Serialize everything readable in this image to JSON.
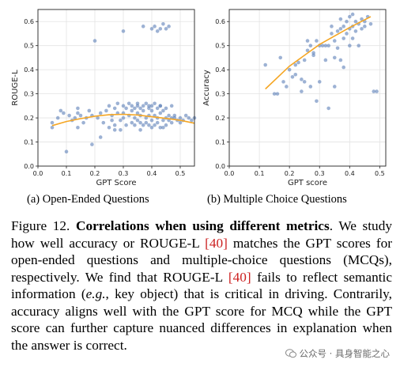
{
  "chart_data": [
    {
      "type": "scatter",
      "panel": "a",
      "xlabel": "GPT Score",
      "ylabel": "ROUGE-L",
      "xlim": [
        0.0,
        0.55
      ],
      "ylim": [
        0.0,
        0.65
      ],
      "xticks": [
        "0.0",
        "0.1",
        "0.2",
        "0.3",
        "0.4",
        "0.5"
      ],
      "yticks": [
        "0.0",
        "0.1",
        "0.2",
        "0.3",
        "0.4",
        "0.5",
        "0.6"
      ],
      "grid": true,
      "point_color": "#5b7fb8",
      "trend_color": "#f5a623",
      "trend_x": [
        0.05,
        0.1,
        0.15,
        0.2,
        0.25,
        0.3,
        0.35,
        0.4,
        0.45,
        0.5,
        0.55
      ],
      "trend_y": [
        0.168,
        0.185,
        0.197,
        0.207,
        0.213,
        0.215,
        0.212,
        0.205,
        0.198,
        0.19,
        0.178
      ],
      "points": [
        [
          0.05,
          0.16
        ],
        [
          0.05,
          0.18
        ],
        [
          0.07,
          0.2
        ],
        [
          0.08,
          0.23
        ],
        [
          0.09,
          0.22
        ],
        [
          0.1,
          0.06
        ],
        [
          0.11,
          0.21
        ],
        [
          0.12,
          0.19
        ],
        [
          0.13,
          0.2
        ],
        [
          0.14,
          0.22
        ],
        [
          0.14,
          0.24
        ],
        [
          0.15,
          0.21
        ],
        [
          0.16,
          0.18
        ],
        [
          0.17,
          0.2
        ],
        [
          0.18,
          0.23
        ],
        [
          0.19,
          0.21
        ],
        [
          0.19,
          0.09
        ],
        [
          0.2,
          0.52
        ],
        [
          0.21,
          0.2
        ],
        [
          0.22,
          0.22
        ],
        [
          0.22,
          0.12
        ],
        [
          0.23,
          0.18
        ],
        [
          0.24,
          0.23
        ],
        [
          0.25,
          0.16
        ],
        [
          0.25,
          0.25
        ],
        [
          0.26,
          0.21
        ],
        [
          0.26,
          0.19
        ],
        [
          0.27,
          0.17
        ],
        [
          0.27,
          0.24
        ],
        [
          0.28,
          0.22
        ],
        [
          0.28,
          0.26
        ],
        [
          0.29,
          0.19
        ],
        [
          0.29,
          0.15
        ],
        [
          0.3,
          0.2
        ],
        [
          0.3,
          0.25
        ],
        [
          0.3,
          0.22
        ],
        [
          0.31,
          0.17
        ],
        [
          0.31,
          0.24
        ],
        [
          0.32,
          0.21
        ],
        [
          0.32,
          0.26
        ],
        [
          0.33,
          0.18
        ],
        [
          0.33,
          0.23
        ],
        [
          0.33,
          0.25
        ],
        [
          0.34,
          0.2
        ],
        [
          0.34,
          0.17
        ],
        [
          0.34,
          0.24
        ],
        [
          0.35,
          0.22
        ],
        [
          0.35,
          0.26
        ],
        [
          0.35,
          0.19
        ],
        [
          0.36,
          0.18
        ],
        [
          0.36,
          0.24
        ],
        [
          0.36,
          0.21
        ],
        [
          0.37,
          0.25
        ],
        [
          0.37,
          0.17
        ],
        [
          0.37,
          0.23
        ],
        [
          0.38,
          0.2
        ],
        [
          0.38,
          0.26
        ],
        [
          0.38,
          0.18
        ],
        [
          0.39,
          0.24
        ],
        [
          0.39,
          0.21
        ],
        [
          0.39,
          0.17
        ],
        [
          0.4,
          0.25
        ],
        [
          0.4,
          0.19
        ],
        [
          0.4,
          0.23
        ],
        [
          0.41,
          0.17
        ],
        [
          0.41,
          0.21
        ],
        [
          0.41,
          0.26
        ],
        [
          0.42,
          0.2
        ],
        [
          0.42,
          0.24
        ],
        [
          0.42,
          0.18
        ],
        [
          0.43,
          0.22
        ],
        [
          0.43,
          0.16
        ],
        [
          0.43,
          0.25
        ],
        [
          0.44,
          0.19
        ],
        [
          0.44,
          0.23
        ],
        [
          0.45,
          0.2
        ],
        [
          0.45,
          0.17
        ],
        [
          0.45,
          0.24
        ],
        [
          0.46,
          0.21
        ],
        [
          0.46,
          0.19
        ],
        [
          0.47,
          0.2
        ],
        [
          0.47,
          0.18
        ],
        [
          0.48,
          0.21
        ],
        [
          0.49,
          0.19
        ],
        [
          0.5,
          0.2
        ],
        [
          0.5,
          0.18
        ],
        [
          0.51,
          0.19
        ],
        [
          0.52,
          0.21
        ],
        [
          0.53,
          0.2
        ],
        [
          0.54,
          0.19
        ],
        [
          0.55,
          0.2
        ],
        [
          0.3,
          0.56
        ],
        [
          0.37,
          0.58
        ],
        [
          0.4,
          0.57
        ],
        [
          0.41,
          0.58
        ],
        [
          0.42,
          0.56
        ],
        [
          0.43,
          0.57
        ],
        [
          0.44,
          0.59
        ],
        [
          0.45,
          0.57
        ],
        [
          0.46,
          0.58
        ],
        [
          0.36,
          0.15
        ],
        [
          0.27,
          0.15
        ],
        [
          0.14,
          0.16
        ],
        [
          0.35,
          0.25
        ],
        [
          0.39,
          0.25
        ],
        [
          0.43,
          0.25
        ],
        [
          0.47,
          0.25
        ],
        [
          0.4,
          0.16
        ],
        [
          0.44,
          0.16
        ],
        [
          0.48,
          0.2
        ]
      ]
    },
    {
      "type": "scatter",
      "panel": "b",
      "xlabel": "GPT score",
      "ylabel": "Accuracy",
      "xlim": [
        0.0,
        0.52
      ],
      "ylim": [
        0.0,
        0.65
      ],
      "xticks": [
        "0.0",
        "0.1",
        "0.2",
        "0.3",
        "0.4",
        "0.5"
      ],
      "yticks": [
        "0.0",
        "0.1",
        "0.2",
        "0.3",
        "0.4",
        "0.5",
        "0.6"
      ],
      "grid": true,
      "point_color": "#5b7fb8",
      "trend_color": "#f5a623",
      "trend_x": [
        0.12,
        0.2,
        0.3,
        0.4,
        0.47
      ],
      "trend_y": [
        0.32,
        0.415,
        0.505,
        0.575,
        0.62
      ],
      "points": [
        [
          0.12,
          0.42
        ],
        [
          0.15,
          0.3
        ],
        [
          0.16,
          0.3
        ],
        [
          0.17,
          0.45
        ],
        [
          0.18,
          0.35
        ],
        [
          0.19,
          0.33
        ],
        [
          0.2,
          0.4
        ],
        [
          0.21,
          0.37
        ],
        [
          0.22,
          0.38
        ],
        [
          0.23,
          0.43
        ],
        [
          0.24,
          0.36
        ],
        [
          0.25,
          0.44
        ],
        [
          0.25,
          0.35
        ],
        [
          0.26,
          0.48
        ],
        [
          0.27,
          0.5
        ],
        [
          0.27,
          0.33
        ],
        [
          0.28,
          0.46
        ],
        [
          0.29,
          0.52
        ],
        [
          0.3,
          0.5
        ],
        [
          0.3,
          0.35
        ],
        [
          0.31,
          0.5
        ],
        [
          0.32,
          0.5
        ],
        [
          0.33,
          0.5
        ],
        [
          0.33,
          0.24
        ],
        [
          0.34,
          0.55
        ],
        [
          0.35,
          0.52
        ],
        [
          0.35,
          0.33
        ],
        [
          0.36,
          0.56
        ],
        [
          0.36,
          0.49
        ],
        [
          0.37,
          0.57
        ],
        [
          0.37,
          0.44
        ],
        [
          0.38,
          0.58
        ],
        [
          0.38,
          0.53
        ],
        [
          0.39,
          0.6
        ],
        [
          0.39,
          0.55
        ],
        [
          0.4,
          0.57
        ],
        [
          0.4,
          0.5
        ],
        [
          0.4,
          0.62
        ],
        [
          0.41,
          0.58
        ],
        [
          0.41,
          0.53
        ],
        [
          0.42,
          0.6
        ],
        [
          0.42,
          0.56
        ],
        [
          0.43,
          0.59
        ],
        [
          0.43,
          0.5
        ],
        [
          0.44,
          0.61
        ],
        [
          0.44,
          0.57
        ],
        [
          0.45,
          0.6
        ],
        [
          0.45,
          0.58
        ],
        [
          0.46,
          0.62
        ],
        [
          0.47,
          0.59
        ],
        [
          0.48,
          0.31
        ],
        [
          0.49,
          0.31
        ],
        [
          0.28,
          0.47
        ],
        [
          0.32,
          0.44
        ],
        [
          0.35,
          0.45
        ],
        [
          0.38,
          0.41
        ],
        [
          0.24,
          0.31
        ],
        [
          0.29,
          0.27
        ],
        [
          0.22,
          0.42
        ],
        [
          0.26,
          0.52
        ],
        [
          0.34,
          0.58
        ],
        [
          0.37,
          0.61
        ],
        [
          0.41,
          0.63
        ]
      ]
    }
  ],
  "sub_captions": {
    "a": "(a) Open-Ended Questions",
    "b": "(b) Multiple Choice Questions"
  },
  "caption": {
    "prefix": "Figure 12. ",
    "bold": "Correlations when using different metrics",
    "part1": ". We study how well accuracy or ROUGE-L ",
    "ref1": "[40]",
    "part2": " matches the GPT scores for open-ended questions and multiple-choice questions (MCQs), respectively.  We find that ROUGE-L ",
    "ref2": "[40]",
    "part3": " fails to reflect semantic information (",
    "eg": "e.g.",
    "part4": ", key object) that is critical in driving. Contrarily, accuracy aligns well with the GPT score for MCQ while the GPT score can further capture nuanced differences in explanation when the answer is correct."
  },
  "watermark": {
    "text": "公众号 · 具身智能之心",
    "icon": "wechat-icon"
  }
}
